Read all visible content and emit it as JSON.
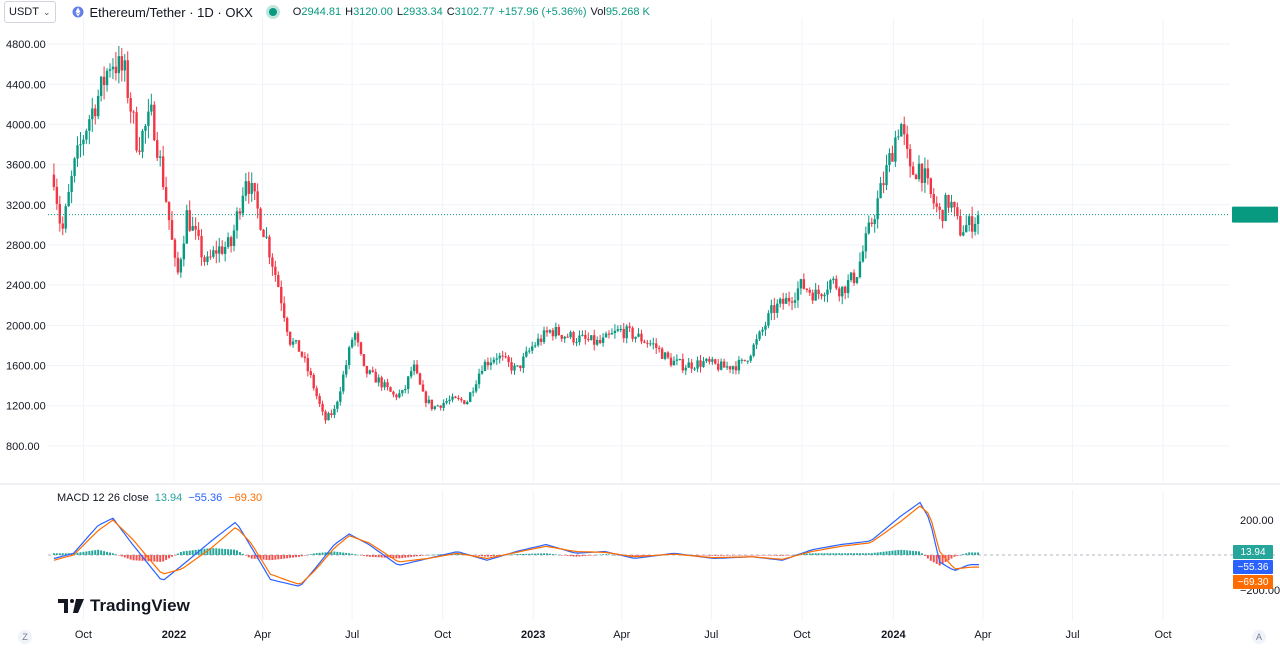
{
  "header": {
    "currency": "USDT",
    "symbol_title": "Ethereum/Tether · 1D · OKX",
    "ohlc": {
      "o_label": "O",
      "o": "2944.81",
      "h_label": "H",
      "h": "3120.00",
      "l_label": "L",
      "l": "2933.34",
      "c_label": "C",
      "c": "3102.77",
      "change": "+157.96 (+5.36%)",
      "vol_label": "Vol",
      "vol": "95.268 K"
    }
  },
  "macd_legend": {
    "title": "MACD 12 26 close",
    "hist": "13.94",
    "macd": "−55.36",
    "signal": "−69.30"
  },
  "brand": {
    "name": "TradingView"
  },
  "controls": {
    "left": "Z",
    "right": "A"
  },
  "colors": {
    "up": "#089981",
    "down": "#f23645",
    "macd": "#2962ff",
    "signal": "#ff6d00",
    "hist_up": "#26a69a",
    "hist_down": "#ef5350",
    "grid": "#f0f3fa"
  },
  "chart_data": {
    "type": "candlestick",
    "title": "Ethereum/Tether · 1D · OKX",
    "price_axis": {
      "ticks": [
        800,
        1200,
        1600,
        2000,
        2400,
        2800,
        3200,
        3600,
        4000,
        4400,
        4800
      ],
      "tick_labels": [
        "800.00",
        "1200.00",
        "1600.00",
        "2000.00",
        "2400.00",
        "2800.00",
        "3200.00",
        "3600.00",
        "4000.00",
        "4400.00",
        "4800.00"
      ],
      "ylim": [
        560,
        4960
      ]
    },
    "last_price": 3102.77,
    "time_axis": {
      "labels": [
        "Oct",
        "2022",
        "Apr",
        "Jul",
        "Oct",
        "2023",
        "Apr",
        "Jul",
        "Oct",
        "2024",
        "Apr",
        "Jul",
        "Oct"
      ],
      "label_days": [
        30,
        122,
        212,
        303,
        395,
        487,
        577,
        668,
        760,
        853,
        944,
        1035,
        1127
      ]
    },
    "close_path": {
      "day": [
        0,
        8,
        20,
        35,
        48,
        58,
        72,
        85,
        100,
        115,
        125,
        135,
        145,
        155,
        165,
        180,
        195,
        205,
        215,
        228,
        240,
        250,
        262,
        275,
        285,
        298,
        305,
        315,
        330,
        345,
        355,
        365,
        375,
        385,
        400,
        420,
        435,
        450,
        470,
        487,
        505,
        520,
        540,
        555,
        575,
        590,
        610,
        625,
        640,
        660,
        680,
        700,
        715,
        730,
        745,
        760,
        775,
        790,
        800,
        815,
        830,
        845,
        860,
        870,
        880,
        890,
        900,
        910,
        920,
        930,
        940,
        950,
        960,
        970,
        980,
        990
      ],
      "close": [
        3500,
        2900,
        3550,
        4050,
        4350,
        4650,
        4500,
        3800,
        4100,
        3200,
        2450,
        3100,
        2850,
        2600,
        2750,
        2800,
        3500,
        3200,
        2900,
        2400,
        1850,
        1750,
        1450,
        1050,
        1150,
        1650,
        1950,
        1550,
        1450,
        1300,
        1320,
        1600,
        1300,
        1180,
        1250,
        1250,
        1600,
        1700,
        1550,
        1800,
        1950,
        1900,
        1850,
        1820,
        1950,
        1900,
        1800,
        1650,
        1600,
        1630,
        1580,
        1620,
        1850,
        2150,
        2250,
        2400,
        2300,
        2450,
        2350,
        2500,
        3000,
        3500,
        4050,
        3500,
        3600,
        3300,
        3100,
        3250,
        2950,
        3000,
        3103,
        3103,
        3103,
        3103,
        3103,
        3103
      ],
      "last_candle_day": 940
    },
    "macd": {
      "axis_ticks": [
        200,
        -200
      ],
      "axis_tick_labels": [
        "200.00",
        "−200.00"
      ],
      "latest": {
        "histogram": 13.94,
        "macd": -55.36,
        "signal": -69.3
      },
      "shape": {
        "day": [
          0,
          20,
          45,
          60,
          80,
          110,
          130,
          160,
          185,
          200,
          220,
          250,
          265,
          285,
          300,
          320,
          350,
          380,
          410,
          440,
          470,
          500,
          530,
          560,
          590,
          630,
          670,
          710,
          740,
          770,
          800,
          830,
          860,
          880,
          890,
          900,
          915,
          930,
          940
        ],
        "macd": [
          -20,
          10,
          170,
          210,
          60,
          -150,
          -60,
          80,
          190,
          50,
          -140,
          -180,
          -80,
          60,
          120,
          60,
          -60,
          -20,
          20,
          -30,
          20,
          60,
          10,
          20,
          -20,
          10,
          -20,
          -10,
          -30,
          30,
          60,
          80,
          220,
          300,
          200,
          -40,
          -90,
          -55,
          -55
        ],
        "signal": [
          -30,
          0,
          140,
          200,
          90,
          -110,
          -80,
          40,
          160,
          70,
          -110,
          -170,
          -90,
          40,
          110,
          70,
          -40,
          -20,
          10,
          -20,
          15,
          50,
          20,
          15,
          -10,
          5,
          -15,
          -10,
          -25,
          20,
          50,
          70,
          190,
          280,
          230,
          20,
          -80,
          -70,
          -69
        ]
      }
    }
  }
}
